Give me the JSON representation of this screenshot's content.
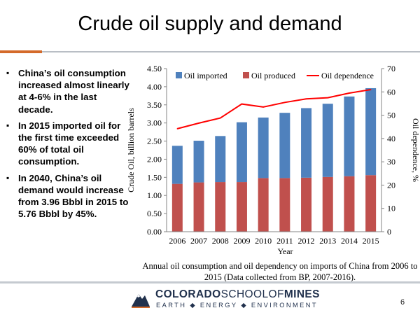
{
  "slide": {
    "title": "Crude oil supply and demand",
    "page_number": "6"
  },
  "bullets": [
    "China’s oil consumption increased almost linearly at 4-6% in the last decade.",
    "In 2015 imported oil for the first time exceeded 60% of total oil consumption.",
    "In 2040, China’s oil demand would increase from 3.96 Bbbl in 2015 to 5.76 Bbbl by 45%."
  ],
  "caption": "Annual oil consumption and oil dependency on imports of China from 2006 to 2015 (Data collected from BP, 2007-2016).",
  "logo": {
    "name_left": "COLORADO",
    "name_mid": "SCHOOLOF",
    "name_right": "MINES",
    "tagline": "EARTH ◆ ENERGY ◆ ENVIRONMENT"
  },
  "colors": {
    "imported": "#4f81bd",
    "produced": "#c0504d",
    "dependence": "#ff0000",
    "accent": "#d46a2a"
  },
  "chart_data": {
    "type": "bar",
    "stacked": true,
    "categories": [
      "2006",
      "2007",
      "2008",
      "2009",
      "2010",
      "2011",
      "2012",
      "2013",
      "2014",
      "2015"
    ],
    "series": [
      {
        "name": "Oil produced",
        "type": "bar",
        "axis": "left",
        "values": [
          1.32,
          1.36,
          1.37,
          1.37,
          1.48,
          1.48,
          1.49,
          1.51,
          1.53,
          1.56
        ]
      },
      {
        "name": "Oil imported",
        "type": "bar",
        "axis": "left",
        "values": [
          1.05,
          1.15,
          1.27,
          1.65,
          1.67,
          1.8,
          1.92,
          2.02,
          2.2,
          2.4
        ]
      },
      {
        "name": "Oil dependence",
        "type": "line",
        "axis": "right",
        "values": [
          44.2,
          46.6,
          48.8,
          54.8,
          53.5,
          55.5,
          57.0,
          57.5,
          59.5,
          61.0
        ]
      }
    ],
    "legend_order": [
      "Oil imported",
      "Oil produced",
      "Oil dependence"
    ],
    "xlabel": "Year",
    "ylabel": "Crude Oil, billion barrels",
    "y2label": "Oil dependence, %",
    "ylim": [
      0,
      4.5
    ],
    "y2lim": [
      0,
      70
    ],
    "yticks": [
      "0.00",
      "0.50",
      "1.00",
      "1.50",
      "2.00",
      "2.50",
      "3.00",
      "3.50",
      "4.00",
      "4.50"
    ],
    "y2ticks": [
      "0",
      "10",
      "20",
      "30",
      "40",
      "50",
      "60",
      "70"
    ],
    "legend_position": "top",
    "grid": false
  }
}
